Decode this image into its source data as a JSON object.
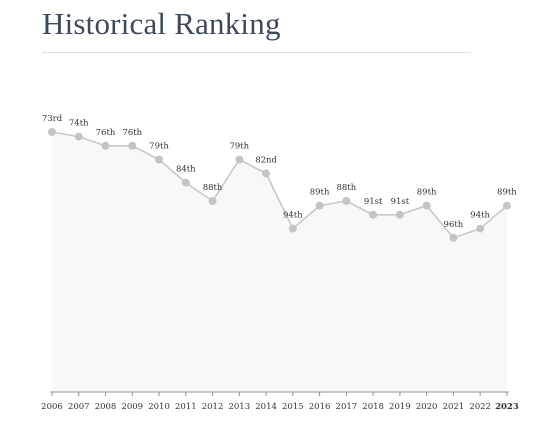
{
  "header": {
    "title": "Historical Ranking"
  },
  "chart_data": {
    "type": "line",
    "x": [
      "2006",
      "2007",
      "2008",
      "2009",
      "2010",
      "2011",
      "2012",
      "2013",
      "2014",
      "2015",
      "2016",
      "2017",
      "2018",
      "2019",
      "2020",
      "2021",
      "2022",
      "2023"
    ],
    "values": [
      73,
      74,
      76,
      76,
      79,
      84,
      88,
      79,
      82,
      94,
      89,
      88,
      91,
      91,
      89,
      96,
      94,
      89
    ],
    "point_labels": [
      "73rd",
      "74th",
      "76th",
      "76th",
      "79th",
      "84th",
      "88th",
      "79th",
      "82nd",
      "94th",
      "89th",
      "88th",
      "91st",
      "91st",
      "89th",
      "96th",
      "94th",
      "89th"
    ],
    "highlighted_x": "2023",
    "y_reversed": true,
    "title": "Historical Ranking",
    "xlabel": "",
    "ylabel": "",
    "grid": false,
    "colors": {
      "line": "#c8c8c8",
      "point": "#c4c4c4",
      "fill": "#f8f8f8",
      "axis": "#8a93a3",
      "text": "#333333"
    }
  }
}
